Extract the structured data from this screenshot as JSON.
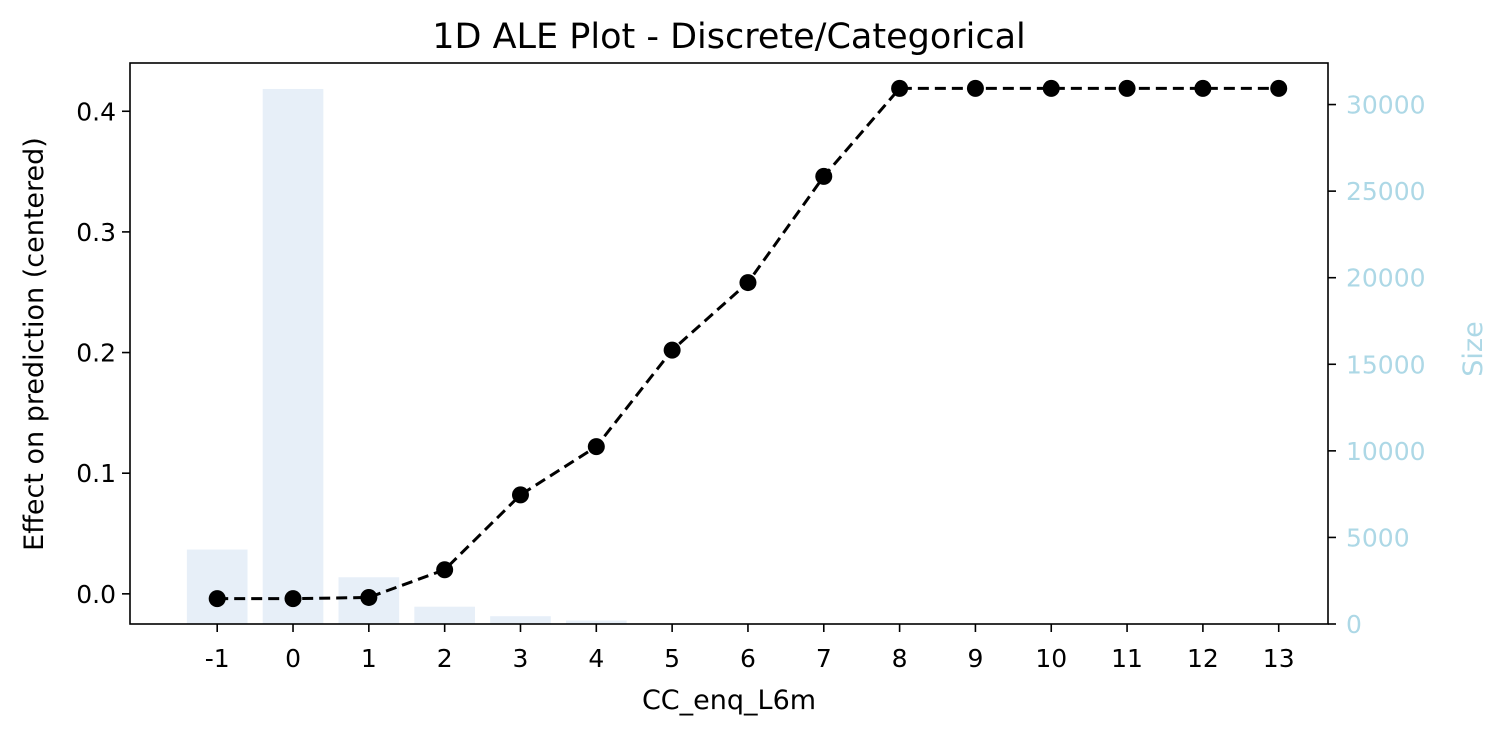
{
  "chart_data": {
    "type": "line",
    "title": "1D ALE Plot - Discrete/Categorical",
    "xlabel": "CC_enq_L6m",
    "ylabel": "Effect on prediction (centered)",
    "ylabel_right": "Size",
    "categories": [
      "-1",
      "0",
      "1",
      "2",
      "3",
      "4",
      "5",
      "6",
      "7",
      "8",
      "9",
      "10",
      "11",
      "12",
      "13"
    ],
    "series": [
      {
        "values": [
          -0.004,
          -0.004,
          -0.003,
          0.02,
          0.082,
          0.122,
          0.202,
          0.258,
          0.346,
          0.419,
          0.419,
          0.419,
          0.419,
          0.419,
          0.419
        ],
        "color": "#000000",
        "line_style": "dashed",
        "marker": "circle"
      },
      {
        "axis": "right",
        "type": "bar",
        "values": [
          4300,
          30900,
          2700,
          1000,
          450,
          200,
          0,
          0,
          0,
          0,
          0,
          0,
          0,
          0,
          0
        ],
        "color": "#e7eff8"
      }
    ],
    "ylim": [
      -0.025,
      0.44
    ],
    "ylim_right": [
      0,
      32400
    ],
    "yticks": [
      "0.0",
      "0.1",
      "0.2",
      "0.3",
      "0.4"
    ],
    "yticks_right": [
      "0",
      "5000",
      "10000",
      "15000",
      "20000",
      "25000",
      "30000"
    ],
    "right_axis_color": "#add8e6",
    "grid": false,
    "legend": "none"
  }
}
